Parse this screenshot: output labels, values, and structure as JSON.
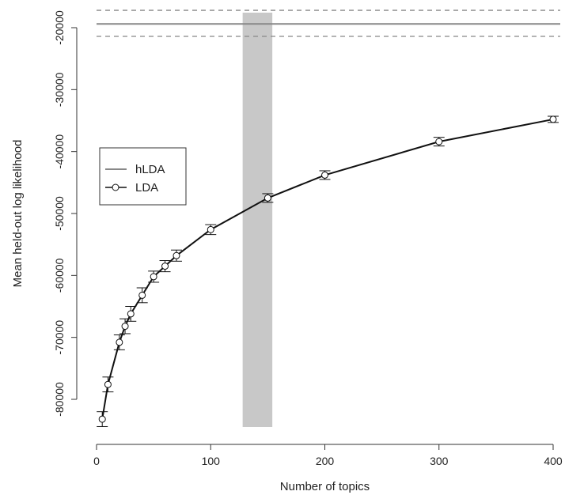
{
  "chart_data": {
    "type": "line",
    "title": "",
    "xlabel": "Number of topics",
    "ylabel": "Mean held-out log likelihood",
    "xlim": [
      0,
      400
    ],
    "ylim": [
      -85000,
      -17500
    ],
    "x_ticks": [
      0,
      100,
      200,
      300,
      400
    ],
    "x_tick_labels": [
      "0",
      "100",
      "200",
      "300",
      "400"
    ],
    "y_ticks": [
      -20000,
      -30000,
      -40000,
      -50000,
      -60000,
      -70000,
      -80000
    ],
    "y_tick_labels": [
      "-20000",
      "-30000",
      "-40000",
      "-50000",
      "-60000",
      "-70000",
      "-80000"
    ],
    "grid": false,
    "legend": {
      "position": "left-middle",
      "entries": [
        "hLDA",
        "LDA"
      ]
    },
    "series": [
      {
        "name": "LDA",
        "style": "line-with-open-circles",
        "color": "#111111",
        "x": [
          5,
          10,
          20,
          25,
          30,
          40,
          50,
          60,
          70,
          100,
          150,
          200,
          300,
          400
        ],
        "y": [
          -83200,
          -77600,
          -70800,
          -68200,
          -66200,
          -63200,
          -60200,
          -58500,
          -56800,
          -52600,
          -47500,
          -43800,
          -38400,
          -34800
        ],
        "error": [
          1200,
          1200,
          1200,
          1200,
          1200,
          1200,
          900,
          900,
          900,
          800,
          700,
          700,
          700,
          500
        ]
      },
      {
        "name": "hLDA",
        "style": "horizontal-line-with-dashed-band",
        "color": "#888888",
        "mean": -19400,
        "band": [
          -21400,
          -17200
        ],
        "peak_topics_range": [
          128,
          154
        ],
        "band_color": "#c8c8c8"
      }
    ]
  }
}
